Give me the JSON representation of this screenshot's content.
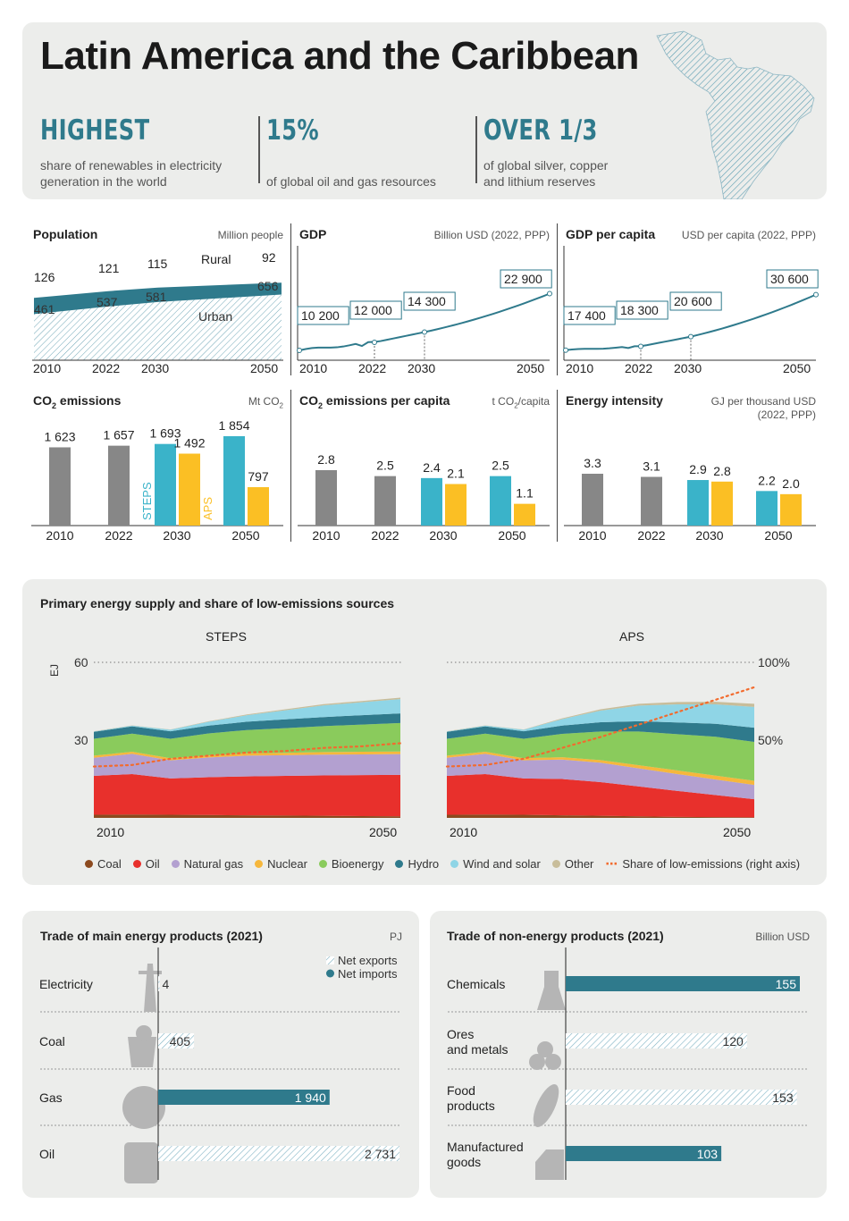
{
  "header": {
    "title": "Latin America and the Caribbean",
    "stats": [
      {
        "big": "HIGHEST",
        "desc1": "share of renewables in electricity",
        "desc2": "generation in the world"
      },
      {
        "big": "15%",
        "desc1": "",
        "desc2": "of global oil and gas resources"
      },
      {
        "big": "OVER 1/3",
        "desc1": "of global silver, copper",
        "desc2": "and lithium reserves"
      }
    ]
  },
  "colors": {
    "teal": "#2f7a8c",
    "grey": "#878787",
    "steps": "#3ab3c9",
    "aps": "#fbbf24",
    "coal": "#8c4a1f",
    "oil": "#e8302c",
    "gas": "#b3a0d0",
    "nuclear": "#f6b73c",
    "bio": "#8acb5c",
    "hydro": "#2f7a8c",
    "wind": "#8fd5e6",
    "other": "#c8bd9a",
    "share": "#f26b2e"
  },
  "chart_data": [
    {
      "type": "area",
      "id": "population",
      "title": "Population",
      "unit": "Million people",
      "x": [
        "2010",
        "2022",
        "2030",
        "2050"
      ],
      "series": [
        {
          "name": "Rural",
          "values": [
            126,
            121,
            115,
            92
          ]
        },
        {
          "name": "Urban",
          "values": [
            461,
            537,
            581,
            656
          ]
        }
      ],
      "labels": {
        "rural": "Rural",
        "urban": "Urban"
      }
    },
    {
      "type": "line",
      "id": "gdp",
      "title": "GDP",
      "unit": "Billion USD (2022, PPP)",
      "x": [
        "2010",
        "2022",
        "2030",
        "2050"
      ],
      "values": [
        10200,
        12000,
        14300,
        22900
      ],
      "value_labels": [
        "10 200",
        "12 000",
        "14 300",
        "22 900"
      ]
    },
    {
      "type": "line",
      "id": "gdppc",
      "title": "GDP per capita",
      "unit": "USD per capita (2022, PPP)",
      "x": [
        "2010",
        "2022",
        "2030",
        "2050"
      ],
      "values": [
        17400,
        18300,
        20600,
        30600
      ],
      "value_labels": [
        "17 400",
        "18 300",
        "20 600",
        "30 600"
      ]
    },
    {
      "type": "bar",
      "id": "co2",
      "title_main": "CO",
      "title_sub": "2",
      "title_rest": " emissions",
      "unit_main": "Mt CO",
      "unit_sub": "2",
      "categories": [
        "2010",
        "2022",
        "2030",
        "2050"
      ],
      "historical": [
        1623,
        1657
      ],
      "steps": [
        1693,
        1854
      ],
      "aps": [
        1492,
        797
      ],
      "labels": [
        "1 623",
        "1 657",
        "1 693",
        "1 492",
        "1 854",
        "797"
      ],
      "steps_label": "STEPS",
      "aps_label": "APS"
    },
    {
      "type": "bar",
      "id": "co2pc",
      "title_main": "CO",
      "title_sub": "2",
      "title_rest": " emissions per capita",
      "unit_main": "t CO",
      "unit_sub": "2",
      "unit_rest": "/capita",
      "categories": [
        "2010",
        "2022",
        "2030",
        "2050"
      ],
      "historical": [
        2.8,
        2.5
      ],
      "steps": [
        2.4,
        2.5
      ],
      "aps": [
        2.1,
        1.1
      ],
      "labels": [
        "2.8",
        "2.5",
        "2.4",
        "2.1",
        "2.5",
        "1.1"
      ]
    },
    {
      "type": "bar",
      "id": "ei",
      "title": "Energy intensity",
      "unit1": "GJ per thousand USD",
      "unit2": "(2022, PPP)",
      "categories": [
        "2010",
        "2022",
        "2030",
        "2050"
      ],
      "historical": [
        3.3,
        3.1
      ],
      "steps": [
        2.9,
        2.2
      ],
      "aps": [
        2.8,
        2.0
      ],
      "labels": [
        "3.3",
        "3.1",
        "2.9",
        "2.8",
        "2.2",
        "2.0"
      ]
    },
    {
      "type": "area",
      "id": "pes",
      "title": "Primary energy supply and share of low-emissions sources",
      "ylabel": "EJ",
      "yticks": [
        "60",
        "30"
      ],
      "ylim": [
        0,
        60
      ],
      "right_ticks": [
        "100%",
        "50%"
      ],
      "right_ylim": [
        0,
        100
      ],
      "x_labels": [
        "2010",
        "2050"
      ],
      "years": [
        2010,
        2015,
        2020,
        2025,
        2030,
        2035,
        2040,
        2045,
        2050
      ],
      "layers": [
        "Coal",
        "Oil",
        "Natural gas",
        "Nuclear",
        "Bioenergy",
        "Hydro",
        "Wind and solar",
        "Other"
      ],
      "scenarios": [
        {
          "name": "STEPS",
          "data": {
            "Coal": [
              1.2,
              1.3,
              1.2,
              1.1,
              1.0,
              0.9,
              0.8,
              0.7,
              0.6
            ],
            "Oil": [
              15.0,
              15.6,
              14.0,
              14.6,
              15.0,
              15.3,
              15.6,
              15.8,
              16.0
            ],
            "Natural gas": [
              7.0,
              7.8,
              7.0,
              7.6,
              8.0,
              8.0,
              8.0,
              8.0,
              8.0
            ],
            "Nuclear": [
              0.8,
              0.8,
              0.8,
              0.8,
              0.9,
              0.9,
              1.0,
              1.0,
              1.0
            ],
            "Bioenergy": [
              6.5,
              7.0,
              7.5,
              8.5,
              9.0,
              9.5,
              10.0,
              10.5,
              11.0
            ],
            "Hydro": [
              2.7,
              2.8,
              2.9,
              3.0,
              3.2,
              3.4,
              3.5,
              3.6,
              3.7
            ],
            "Wind and solar": [
              0.1,
              0.3,
              0.6,
              1.5,
              2.5,
              3.5,
              4.5,
              5.0,
              5.5
            ],
            "Other": [
              0.1,
              0.1,
              0.1,
              0.2,
              0.3,
              0.4,
              0.5,
              0.5,
              0.6
            ]
          },
          "share": [
            33,
            34,
            38,
            40,
            42,
            43,
            45,
            46,
            48
          ]
        },
        {
          "name": "APS",
          "data": {
            "Coal": [
              1.2,
              1.3,
              1.2,
              1.0,
              0.8,
              0.6,
              0.4,
              0.3,
              0.2
            ],
            "Oil": [
              15.0,
              15.6,
              14.0,
              14.0,
              13.0,
              11.5,
              10.0,
              8.5,
              7.0
            ],
            "Natural gas": [
              7.0,
              7.8,
              7.0,
              7.5,
              7.5,
              7.0,
              6.5,
              6.0,
              5.5
            ],
            "Nuclear": [
              0.8,
              0.8,
              0.8,
              0.9,
              1.0,
              1.2,
              1.4,
              1.5,
              1.6
            ],
            "Bioenergy": [
              6.5,
              7.0,
              7.5,
              9.0,
              11.0,
              13.0,
              14.0,
              15.0,
              15.0
            ],
            "Hydro": [
              2.7,
              2.8,
              2.9,
              3.2,
              3.6,
              4.0,
              4.5,
              5.0,
              5.5
            ],
            "Wind and solar": [
              0.1,
              0.3,
              0.6,
              2.5,
              4.5,
              6.0,
              7.0,
              7.5,
              8.0
            ],
            "Other": [
              0.1,
              0.1,
              0.1,
              0.3,
              0.5,
              0.7,
              0.9,
              1.0,
              1.2
            ]
          },
          "share": [
            33,
            34,
            38,
            45,
            52,
            60,
            68,
            76,
            84
          ]
        }
      ],
      "legend": [
        "Coal",
        "Oil",
        "Natural gas",
        "Nuclear",
        "Bioenergy",
        "Hydro",
        "Wind and solar",
        "Other",
        "Share of low-emissions (right axis)"
      ]
    },
    {
      "type": "bar",
      "id": "trade_energy",
      "title": "Trade of main energy products (2021)",
      "unit": "PJ",
      "legend": [
        "Net exports",
        "Net imports"
      ],
      "categories": [
        "Electricity",
        "Coal",
        "Gas",
        "Oil"
      ],
      "values": [
        4,
        405,
        1940,
        2731
      ],
      "kind": [
        "exports",
        "exports",
        "imports",
        "exports"
      ],
      "labels": [
        "4",
        "405",
        "1 940",
        "2 731"
      ],
      "xmax": 2731
    },
    {
      "type": "bar",
      "id": "trade_nonenergy",
      "title": "Trade of non-energy products (2021)",
      "unit": "Billion USD",
      "categories": [
        [
          "Chemicals"
        ],
        [
          "Ores",
          "and metals"
        ],
        [
          "Food",
          "products"
        ],
        [
          "Manufactured",
          "goods"
        ]
      ],
      "values": [
        155,
        120,
        153,
        103
      ],
      "kind": [
        "imports",
        "exports",
        "exports",
        "imports"
      ],
      "labels": [
        "155",
        "120",
        "153",
        "103"
      ],
      "xmax": 155
    }
  ]
}
